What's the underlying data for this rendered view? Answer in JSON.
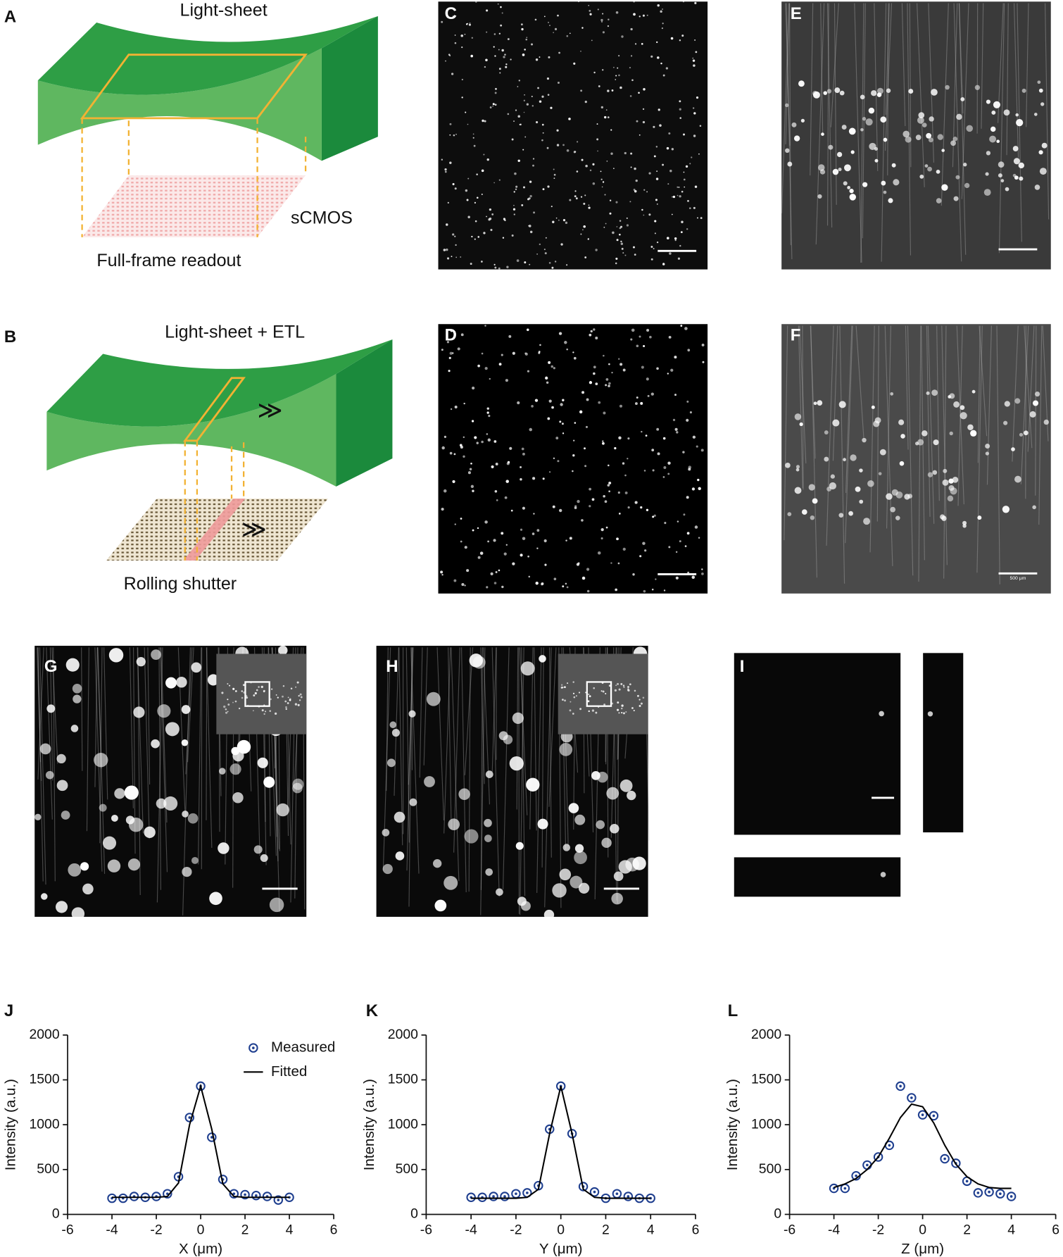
{
  "panel_labels": [
    "A",
    "B",
    "C",
    "D",
    "E",
    "F",
    "G",
    "H",
    "I",
    "J",
    "K",
    "L"
  ],
  "diagram_a": {
    "top_label": "Light-sheet",
    "sensor_label": "sCMOS",
    "bottom_label": "Full-frame readout"
  },
  "diagram_b": {
    "top_label": "Light-sheet + ETL",
    "bottom_label": "Rolling shutter"
  },
  "scale_bar_f": "500 μm",
  "chart_data": [
    {
      "type": "line",
      "xlabel": "X (μm)",
      "ylabel": "Intensity (a.u.)",
      "x": [
        -4,
        -3.5,
        -3,
        -2.5,
        -2,
        -1.5,
        -1,
        -0.5,
        0,
        0.5,
        1,
        1.5,
        2,
        2.5,
        3,
        3.5,
        4
      ],
      "series": [
        {
          "name": "Measured",
          "color": "#1f3f8f",
          "marker": "circle",
          "values": [
            180,
            180,
            200,
            190,
            200,
            230,
            420,
            1080,
            1430,
            860,
            390,
            230,
            220,
            210,
            200,
            160,
            190
          ]
        },
        {
          "name": "Fitted",
          "color": "#000000",
          "marker": "none",
          "values": [
            190,
            190,
            190,
            190,
            190,
            200,
            350,
            1000,
            1430,
            950,
            340,
            200,
            190,
            190,
            190,
            190,
            190
          ]
        }
      ],
      "xlim": [
        -6,
        6
      ],
      "xticks": [
        -6,
        -4,
        -2,
        0,
        2,
        4,
        6
      ],
      "ylim": [
        0,
        2000
      ],
      "yticks": [
        0,
        500,
        1000,
        1500,
        2000
      ],
      "legend": "upper right"
    },
    {
      "type": "line",
      "xlabel": "Y (μm)",
      "ylabel": "Intensity (a.u.)",
      "x": [
        -4,
        -3.5,
        -3,
        -2.5,
        -2,
        -1.5,
        -1,
        -0.5,
        0,
        0.5,
        1,
        1.5,
        2,
        2.5,
        3,
        3.5,
        4
      ],
      "series": [
        {
          "color": "#1f3f8f",
          "marker": "circle",
          "values": [
            190,
            190,
            200,
            200,
            230,
            240,
            320,
            950,
            1430,
            900,
            310,
            250,
            180,
            230,
            200,
            180,
            180
          ]
        },
        {
          "color": "#000000",
          "marker": "none",
          "values": [
            180,
            180,
            180,
            180,
            180,
            190,
            280,
            900,
            1430,
            900,
            280,
            190,
            180,
            180,
            180,
            180,
            180
          ]
        }
      ],
      "xlim": [
        -6,
        6
      ],
      "xticks": [
        -6,
        -4,
        -2,
        0,
        2,
        4,
        6
      ],
      "ylim": [
        0,
        2000
      ],
      "yticks": [
        0,
        500,
        1000,
        1500,
        2000
      ]
    },
    {
      "type": "line",
      "xlabel": "Z (μm)",
      "ylabel": "Intensity (a.u.)",
      "x": [
        -4,
        -3.5,
        -3,
        -2.5,
        -2,
        -1.5,
        -1,
        -0.5,
        0,
        0.5,
        1,
        1.5,
        2,
        2.5,
        3,
        3.5,
        4
      ],
      "series": [
        {
          "color": "#1f3f8f",
          "marker": "circle",
          "values": [
            290,
            290,
            430,
            550,
            640,
            770,
            1430,
            1300,
            1110,
            1100,
            620,
            570,
            370,
            240,
            250,
            230,
            200
          ]
        },
        {
          "color": "#000000",
          "marker": "none",
          "values": [
            300,
            340,
            400,
            500,
            640,
            850,
            1080,
            1230,
            1200,
            1020,
            770,
            560,
            420,
            340,
            300,
            290,
            290
          ]
        }
      ],
      "xlim": [
        -6,
        6
      ],
      "xticks": [
        -6,
        -4,
        -2,
        0,
        2,
        4,
        6
      ],
      "ylim": [
        0,
        2000
      ],
      "yticks": [
        0,
        500,
        1000,
        1500,
        2000
      ]
    }
  ]
}
